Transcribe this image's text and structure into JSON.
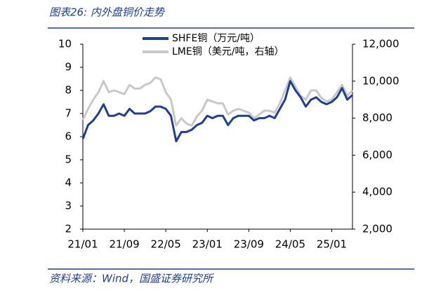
{
  "header": {
    "title": "图表26:  内外盘铜价走势"
  },
  "footer": {
    "source": "资料来源：Wind，国盛证券研究所"
  },
  "chart_data": {
    "type": "line",
    "categories": [
      "21/01",
      null,
      null,
      null,
      null,
      null,
      null,
      null,
      "21/09",
      null,
      null,
      null,
      null,
      null,
      null,
      null,
      "22/05",
      null,
      null,
      null,
      null,
      null,
      null,
      null,
      "23/01",
      null,
      null,
      null,
      null,
      null,
      null,
      null,
      "23/09",
      null,
      null,
      null,
      null,
      null,
      null,
      null,
      "24/05",
      null,
      null,
      null,
      null,
      null,
      null,
      null,
      "25/01",
      null,
      null,
      null,
      null
    ],
    "series": [
      {
        "name": "SHFE铜（万元/吨）",
        "color": "#1f3f94",
        "values": [
          5.9,
          6.5,
          6.7,
          7.0,
          7.4,
          6.9,
          6.9,
          7.0,
          6.9,
          7.2,
          7.0,
          7.0,
          7.0,
          7.1,
          7.3,
          7.3,
          7.2,
          6.9,
          5.8,
          6.2,
          6.2,
          6.3,
          6.5,
          6.6,
          6.9,
          6.8,
          6.9,
          6.9,
          6.5,
          6.8,
          6.9,
          6.9,
          6.9,
          6.7,
          6.8,
          6.8,
          6.9,
          6.8,
          7.2,
          7.6,
          8.4,
          8.0,
          7.7,
          7.3,
          7.6,
          7.7,
          7.5,
          7.4,
          7.5,
          7.7,
          8.1,
          7.6,
          7.8
        ]
      },
      {
        "name": "LME铜（美元/吨，右轴）",
        "color": "#c8c8c8",
        "axis": "y2",
        "values": [
          7900,
          8500,
          9000,
          9400,
          10000,
          9400,
          9500,
          9400,
          9300,
          9800,
          9600,
          9600,
          9800,
          9900,
          10200,
          10100,
          9400,
          9000,
          7600,
          8000,
          7700,
          7600,
          8100,
          8400,
          9000,
          8900,
          8800,
          8800,
          8200,
          8400,
          8500,
          8400,
          8300,
          8000,
          8200,
          8400,
          8400,
          8300,
          8800,
          9500,
          10200,
          9700,
          9200,
          9000,
          9500,
          9500,
          9100,
          8900,
          9000,
          9400,
          9800,
          9200,
          9500
        ]
      }
    ],
    "ylim": [
      2,
      10
    ],
    "yticks": [
      2,
      3,
      4,
      5,
      6,
      7,
      8,
      9,
      10
    ],
    "y2lim": [
      2000,
      12000
    ],
    "y2ticks": [
      {
        "value": 2000,
        "label": "2,000"
      },
      {
        "value": 4000,
        "label": "4,000"
      },
      {
        "value": 6000,
        "label": "6,000"
      },
      {
        "value": 8000,
        "label": "8,000"
      },
      {
        "value": 10000,
        "label": "10,000"
      },
      {
        "value": 12000,
        "label": "12,000"
      }
    ],
    "legend": "top"
  }
}
